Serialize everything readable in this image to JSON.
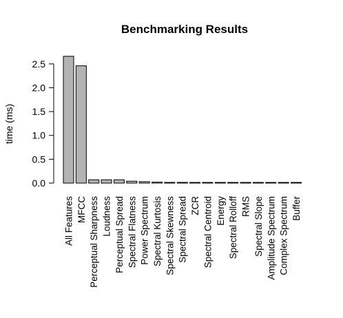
{
  "chart_data": {
    "type": "bar",
    "title": "Benchmarking Results",
    "xlabel": "",
    "ylabel": "time (ms)",
    "ylim": [
      0,
      2.7
    ],
    "yticks": [
      "0.0",
      "0.5",
      "1.0",
      "1.5",
      "2.0",
      "2.5"
    ],
    "grid": false,
    "categories": [
      "All Features",
      "MFCC",
      "Perceptual Sharpness",
      "Loudness",
      "Perceptual Spread",
      "Spectral Flatness",
      "Power Spectrum",
      "Spectral Kurtosis",
      "Spectral Skewness",
      "Spectral Spread",
      "ZCR",
      "Spectral Centroid",
      "Energy",
      "Spectral Rolloff",
      "RMS",
      "Spectral Slope",
      "Amplitude Spectrum",
      "Complex Spectrum",
      "Buffer"
    ],
    "values": [
      2.66,
      2.46,
      0.07,
      0.07,
      0.07,
      0.04,
      0.03,
      0.02,
      0.015,
      0.015,
      0.01,
      0.01,
      0.01,
      0.01,
      0.01,
      0.01,
      0.01,
      0.01,
      0.01
    ],
    "colors": {
      "bar_fill": "#b3b3b3",
      "bar_stroke": "#000000"
    }
  }
}
